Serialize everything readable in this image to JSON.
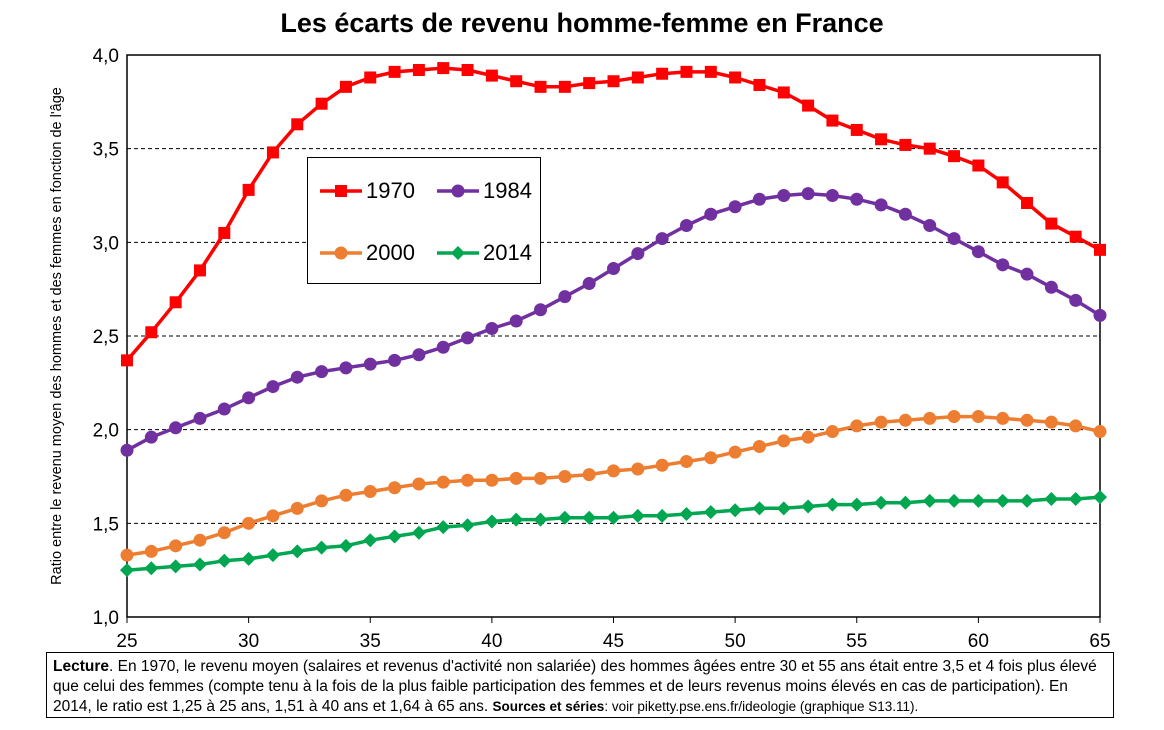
{
  "chart_data": {
    "type": "line",
    "title": "Les écarts de revenu homme-femme en France",
    "ylabel": "Ratio entre le revenu moyen des hommes et des femmes en fonction de l'âge",
    "xlabel": "",
    "xlim": [
      25,
      65
    ],
    "ylim": [
      1.0,
      4.0
    ],
    "x_ticks": [
      "25",
      "30",
      "35",
      "40",
      "45",
      "50",
      "55",
      "60",
      "65"
    ],
    "y_ticks": [
      "1,0",
      "1,5",
      "2,0",
      "2,5",
      "3,0",
      "3,5",
      "4,0"
    ],
    "grid": "horizontal dashed",
    "legend_position": "upper-left inside plot",
    "x": [
      25,
      26,
      27,
      28,
      29,
      30,
      31,
      32,
      33,
      34,
      35,
      36,
      37,
      38,
      39,
      40,
      41,
      42,
      43,
      44,
      45,
      46,
      47,
      48,
      49,
      50,
      51,
      52,
      53,
      54,
      55,
      56,
      57,
      58,
      59,
      60,
      61,
      62,
      63,
      64,
      65
    ],
    "series": [
      {
        "name": "1970",
        "color": "#ff0000",
        "marker": "square",
        "values": [
          2.37,
          2.52,
          2.68,
          2.85,
          3.05,
          3.28,
          3.48,
          3.63,
          3.74,
          3.83,
          3.88,
          3.91,
          3.92,
          3.93,
          3.92,
          3.89,
          3.86,
          3.83,
          3.83,
          3.85,
          3.86,
          3.88,
          3.9,
          3.91,
          3.91,
          3.88,
          3.84,
          3.8,
          3.73,
          3.65,
          3.6,
          3.55,
          3.52,
          3.5,
          3.46,
          3.41,
          3.32,
          3.21,
          3.1,
          3.03,
          2.96
        ]
      },
      {
        "name": "1984",
        "color": "#7030a0",
        "marker": "circle",
        "values": [
          1.89,
          1.96,
          2.01,
          2.06,
          2.11,
          2.17,
          2.23,
          2.28,
          2.31,
          2.33,
          2.35,
          2.37,
          2.4,
          2.44,
          2.49,
          2.54,
          2.58,
          2.64,
          2.71,
          2.78,
          2.86,
          2.94,
          3.02,
          3.09,
          3.15,
          3.19,
          3.23,
          3.25,
          3.26,
          3.25,
          3.23,
          3.2,
          3.15,
          3.09,
          3.02,
          2.95,
          2.88,
          2.83,
          2.76,
          2.69,
          2.61
        ]
      },
      {
        "name": "2000",
        "color": "#ed7d31",
        "marker": "circle",
        "values": [
          1.33,
          1.35,
          1.38,
          1.41,
          1.45,
          1.5,
          1.54,
          1.58,
          1.62,
          1.65,
          1.67,
          1.69,
          1.71,
          1.72,
          1.73,
          1.73,
          1.74,
          1.74,
          1.75,
          1.76,
          1.78,
          1.79,
          1.81,
          1.83,
          1.85,
          1.88,
          1.91,
          1.94,
          1.96,
          1.99,
          2.02,
          2.04,
          2.05,
          2.06,
          2.07,
          2.07,
          2.06,
          2.05,
          2.04,
          2.02,
          1.99
        ]
      },
      {
        "name": "2014",
        "color": "#00a650",
        "marker": "diamond",
        "values": [
          1.25,
          1.26,
          1.27,
          1.28,
          1.3,
          1.31,
          1.33,
          1.35,
          1.37,
          1.38,
          1.41,
          1.43,
          1.45,
          1.48,
          1.49,
          1.51,
          1.52,
          1.52,
          1.53,
          1.53,
          1.53,
          1.54,
          1.54,
          1.55,
          1.56,
          1.57,
          1.58,
          1.58,
          1.59,
          1.6,
          1.6,
          1.61,
          1.61,
          1.62,
          1.62,
          1.62,
          1.62,
          1.62,
          1.63,
          1.63,
          1.64
        ]
      }
    ]
  },
  "note": {
    "lecture_label": "Lecture",
    "lecture_text": ". En 1970, le revenu moyen (salaires et revenus d'activité non salariée) des hommes âgées entre 30 et 55 ans était entre 3,5 et 4 fois plus élevé que celui des femmes (compte tenu à la fois de la plus faible participation des femmes et de leurs revenus moins élevés en cas de participation). En 2014, le ratio est 1,25 à 25 ans, 1,51 à 40 ans et 1,64 à 65 ans. ",
    "sources_label": "Sources et séries",
    "sources_text": ": voir piketty.pse.ens.fr/ideologie (graphique S13.11)."
  }
}
